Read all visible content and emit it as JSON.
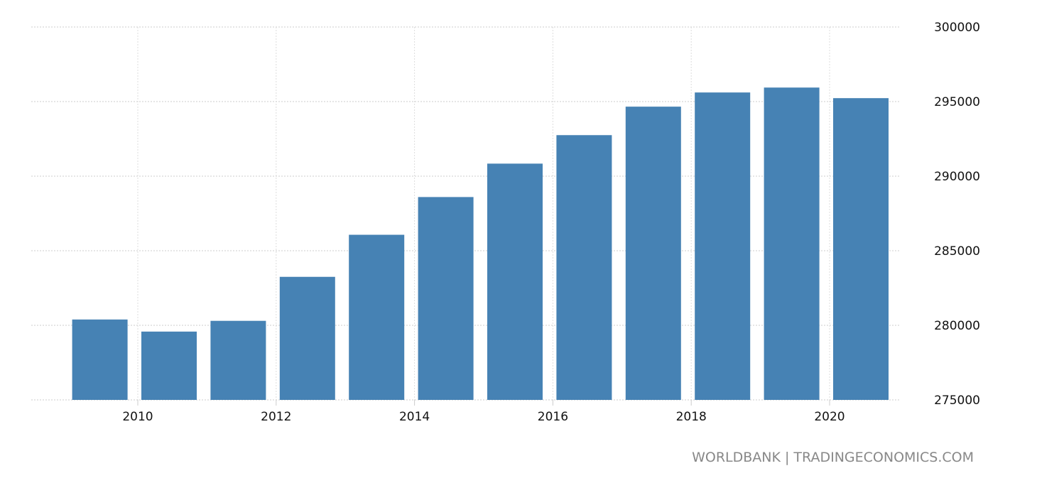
{
  "chart_data": {
    "type": "bar",
    "categories": [
      "2009",
      "2010",
      "2011",
      "2012",
      "2013",
      "2014",
      "2015",
      "2016",
      "2017",
      "2018",
      "2019",
      "2020"
    ],
    "values": [
      280390,
      279580,
      280300,
      283250,
      286070,
      288600,
      290840,
      292750,
      294660,
      295610,
      295940,
      295230
    ],
    "ylim": [
      275000,
      300000
    ],
    "yticks": [
      "275000",
      "280000",
      "285000",
      "290000",
      "295000",
      "300000"
    ],
    "xticks": [
      "2010",
      "2012",
      "2014",
      "2016",
      "2018",
      "2020"
    ],
    "grid": true,
    "y_axis_side": "right",
    "bar_color": "#4682b4",
    "title": "",
    "xlabel": "",
    "ylabel": ""
  },
  "source": "WORLDBANK | TRADINGECONOMICS.COM"
}
